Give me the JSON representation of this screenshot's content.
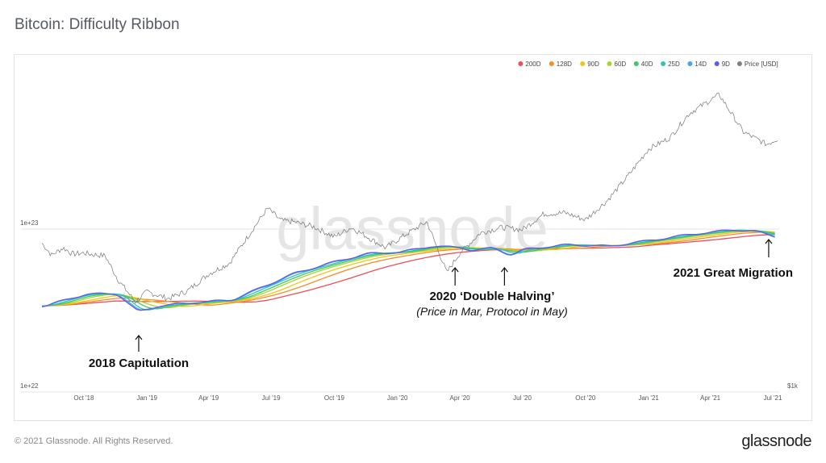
{
  "page": {
    "title": "Bitcoin: Difficulty Ribbon",
    "copyright": "© 2021 Glassnode. All Rights Reserved.",
    "brand": "glassnode",
    "watermark": "glassnode"
  },
  "chart_data": {
    "type": "line",
    "title": "Bitcoin: Difficulty Ribbon",
    "x_range": [
      "2018-08-01",
      "2021-07-08"
    ],
    "x_ticks": [
      "Oct '18",
      "Jan '19",
      "Apr '19",
      "Jul '19",
      "Oct '19",
      "Jan '20",
      "Apr '20",
      "Jul '20",
      "Oct '20",
      "Jan '21",
      "Apr '21",
      "Jul '21"
    ],
    "y_left_ticks": [
      "1e+23",
      "1e+22"
    ],
    "y_left_scale": "log",
    "y_right_ticks": [
      "$1k"
    ],
    "legend_position": "top-right",
    "grid": "horizontal",
    "legend": [
      {
        "name": "200D",
        "color": "#ee4d5a"
      },
      {
        "name": "128D",
        "color": "#f28e2b"
      },
      {
        "name": "90D",
        "color": "#f0c419"
      },
      {
        "name": "60D",
        "color": "#a6d62a"
      },
      {
        "name": "40D",
        "color": "#41c46b"
      },
      {
        "name": "25D",
        "color": "#2ec4b6"
      },
      {
        "name": "14D",
        "color": "#4aa3e8"
      },
      {
        "name": "9D",
        "color": "#5f5ce6"
      },
      {
        "name": "Price [USD]",
        "color": "#808080"
      }
    ],
    "price_usd": [
      [
        "2018-08-01",
        7600
      ],
      [
        "2018-08-15",
        6400
      ],
      [
        "2018-09-01",
        7100
      ],
      [
        "2018-09-15",
        6500
      ],
      [
        "2018-10-01",
        6600
      ],
      [
        "2018-10-15",
        6450
      ],
      [
        "2018-11-01",
        6350
      ],
      [
        "2018-11-20",
        4500
      ],
      [
        "2018-12-15",
        3300
      ],
      [
        "2019-01-01",
        3800
      ],
      [
        "2019-02-01",
        3450
      ],
      [
        "2019-03-01",
        3850
      ],
      [
        "2019-04-01",
        4900
      ],
      [
        "2019-05-01",
        5700
      ],
      [
        "2019-05-25",
        8000
      ],
      [
        "2019-06-26",
        12500
      ],
      [
        "2019-07-15",
        10500
      ],
      [
        "2019-08-01",
        10300
      ],
      [
        "2019-09-01",
        9600
      ],
      [
        "2019-10-01",
        8300
      ],
      [
        "2019-10-26",
        9500
      ],
      [
        "2019-12-15",
        7100
      ],
      [
        "2020-01-15",
        8700
      ],
      [
        "2020-02-13",
        10300
      ],
      [
        "2020-03-13",
        5000
      ],
      [
        "2020-04-01",
        6600
      ],
      [
        "2020-05-01",
        8800
      ],
      [
        "2020-06-01",
        9500
      ],
      [
        "2020-07-01",
        9200
      ],
      [
        "2020-08-01",
        11500
      ],
      [
        "2020-09-01",
        11700
      ],
      [
        "2020-10-01",
        10600
      ],
      [
        "2020-11-01",
        13800
      ],
      [
        "2020-12-01",
        19500
      ],
      [
        "2021-01-01",
        29000
      ],
      [
        "2021-02-01",
        34000
      ],
      [
        "2021-03-01",
        48000
      ],
      [
        "2021-04-14",
        63000
      ],
      [
        "2021-05-19",
        37000
      ],
      [
        "2021-06-22",
        31000
      ],
      [
        "2021-07-08",
        33500
      ]
    ],
    "difficulty_index": [
      [
        "2018-08-01",
        0.48
      ],
      [
        "2018-10-01",
        0.56
      ],
      [
        "2018-11-15",
        0.56
      ],
      [
        "2018-12-15",
        0.44
      ],
      [
        "2019-01-15",
        0.48
      ],
      [
        "2019-03-01",
        0.5
      ],
      [
        "2019-05-01",
        0.52
      ],
      [
        "2019-06-01",
        0.58
      ],
      [
        "2019-07-01",
        0.64
      ],
      [
        "2019-08-01",
        0.7
      ],
      [
        "2019-10-01",
        0.78
      ],
      [
        "2019-11-15",
        0.83
      ],
      [
        "2020-01-01",
        0.84
      ],
      [
        "2020-02-15",
        0.88
      ],
      [
        "2020-03-31",
        0.87
      ],
      [
        "2020-04-15",
        0.85
      ],
      [
        "2020-05-15",
        0.87
      ],
      [
        "2020-06-10",
        0.82
      ],
      [
        "2020-07-01",
        0.86
      ],
      [
        "2020-09-01",
        0.89
      ],
      [
        "2020-11-01",
        0.88
      ],
      [
        "2021-01-01",
        0.92
      ],
      [
        "2021-03-01",
        0.96
      ],
      [
        "2021-05-01",
        0.99
      ],
      [
        "2021-06-01",
        0.98
      ],
      [
        "2021-07-05",
        0.94
      ]
    ],
    "annotations": [
      {
        "label": "2018 Capitulation",
        "date": "2018-12-20"
      },
      {
        "label": "2020 ‘Double Halving’",
        "sublabel": "(Price in Mar, Protocol in May)",
        "date": "2020-03-25",
        "date2": "2020-06-05"
      },
      {
        "label": "2021 Great Migration",
        "date": "2021-06-25"
      }
    ]
  }
}
